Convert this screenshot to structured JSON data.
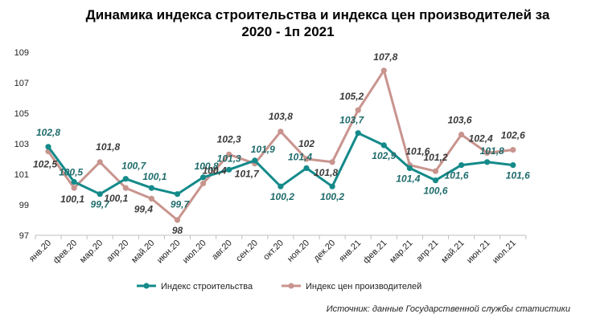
{
  "chart_data": {
    "type": "line",
    "title": "Динамика индекса строительства и индекса цен производителей за 2020 - 1п 2021",
    "title_lines": [
      "Динамика индекса строительства и индекса цен производителей за",
      "2020 - 1п 2021"
    ],
    "categories": [
      "янв.20",
      "фев.20",
      "мар.20",
      "апр.20",
      "май.20",
      "июн.20",
      "июл.20",
      "авг.20",
      "сен.20",
      "окт.20",
      "ноя.20",
      "дек.20",
      "янв.21",
      "фев.21",
      "мар.21",
      "апр.21",
      "май.21",
      "июн.21",
      "июл.21"
    ],
    "yticks": [
      "109",
      "107",
      "105",
      "103",
      "101",
      "99",
      "97"
    ],
    "ylim": [
      97,
      109
    ],
    "grid": false,
    "legend_position": "bottom",
    "series": [
      {
        "name": "Индекс строительства",
        "color": "#148a8a",
        "values": [
          102.8,
          100.5,
          99.7,
          100.7,
          100.1,
          99.7,
          100.8,
          101.3,
          101.9,
          100.2,
          101.4,
          100.2,
          103.7,
          102.9,
          101.4,
          100.6,
          101.6,
          101.8,
          101.6
        ],
        "labels": [
          "102,8",
          "100,5",
          "99,7",
          "100,7",
          "100,1",
          "99,7",
          "100,8",
          "101,3",
          "101,9",
          "100,2",
          "101,4",
          "100,2",
          "103,7",
          "102,9",
          "101,4",
          "100,6",
          "101,6",
          "101,8",
          "101,6"
        ]
      },
      {
        "name": "Индекс цен производителей",
        "color": "#c9948e",
        "values": [
          102.5,
          100.1,
          101.8,
          100.1,
          99.4,
          98.0,
          100.4,
          102.3,
          101.7,
          103.8,
          102.0,
          101.8,
          105.2,
          107.8,
          101.6,
          101.2,
          103.6,
          102.4,
          102.6
        ],
        "labels": [
          "102,5",
          "100,1",
          "101,8",
          "100,1",
          "99,4",
          "98",
          "100,4",
          "102,3",
          "101,7",
          "103,8",
          "102",
          "101,8",
          "105,2",
          "107,8",
          "101,6",
          "101,2",
          "103,6",
          "102,4",
          "102,6"
        ]
      }
    ],
    "source": "Источник: данные Государственной службы статистики"
  }
}
